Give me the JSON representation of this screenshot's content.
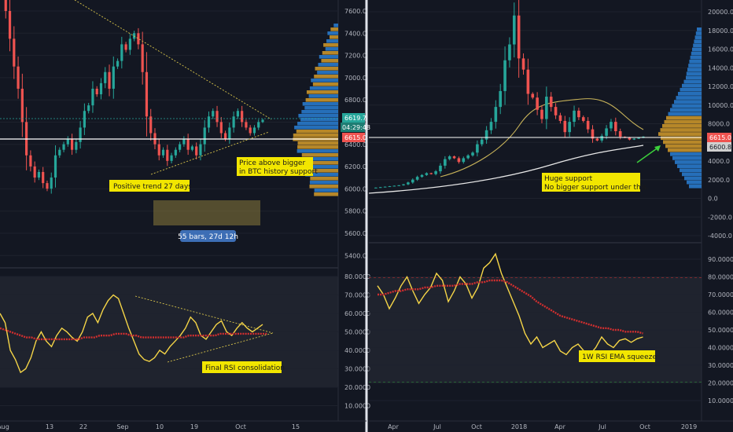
{
  "colors": {
    "background": "#131722",
    "up_candle": "#26a69a",
    "down_candle": "#ef5350",
    "rsi_line": "#f5d547",
    "rsi_ema": "#d32f2f",
    "volume_profile_up": "#2a7fd4",
    "volume_profile_down": "#d39b2a",
    "annotation_bg": "#f2e600",
    "annotation_text": "#1a1a1a",
    "range_box": "#8a7a3a",
    "range_label_bg": "#3d6eb5",
    "price_line": "#ffffff",
    "current_price_tag": "#ef5350",
    "ema_tag": "#d0d0d0",
    "teal_tag": "#26a69a"
  },
  "left_panel": {
    "price_axis": [
      "7600.0",
      "7400.0",
      "7200.0",
      "7000.0",
      "6800.0",
      "6600.0",
      "6400.0",
      "6200.0",
      "6000.0",
      "5800.0",
      "5600.0",
      "5400.0"
    ],
    "rsi_axis": [
      "80.0000",
      "70.0000",
      "60.0000",
      "50.0000",
      "40.0000",
      "30.0000",
      "20.0000",
      "10.0000"
    ],
    "time_axis": [
      "Aug",
      "13",
      "22",
      "Sep",
      "10",
      "19",
      "Oct",
      "15"
    ],
    "price_tags": {
      "teal": "6619.7",
      "time": "04:29:48",
      "red": "6615.0"
    },
    "annotations": {
      "trend": "Positive trend 27 days",
      "support_line1": "Price above bigger",
      "support_line2": "in BTC history support",
      "range_label": "55 bars, 27d 12h",
      "rsi_note": "Final RSI consolidation"
    }
  },
  "right_panel": {
    "price_axis": [
      "20000.0",
      "18000.0",
      "16000.0",
      "14000.0",
      "12000.0",
      "10000.0",
      "8000.0",
      "6000.0",
      "4000.0",
      "2000.0",
      "0.0",
      "-2000.0",
      "-4000.0"
    ],
    "rsi_axis": [
      "90.0000",
      "80.0000",
      "70.0000",
      "60.0000",
      "50.0000",
      "40.0000",
      "30.0000",
      "20.0000",
      "10.0000"
    ],
    "time_axis": [
      "Apr",
      "Jul",
      "Oct",
      "2018",
      "Apr",
      "Jul",
      "Oct",
      "2019"
    ],
    "price_tags": {
      "red": "6615.0",
      "grey": "6600.8"
    },
    "annotations": {
      "support_line1": "Huge support",
      "support_line2": "No bigger support under this.",
      "rsi_note": "1W RSI EMA squeeze"
    }
  },
  "chart_data": [
    {
      "type": "candlestick",
      "title": "",
      "ylim": [
        5300,
        7700
      ],
      "series": [
        {
          "name": "",
          "values": [
            7750,
            7600,
            7350,
            7100,
            6900,
            6600,
            6300,
            6200,
            6100,
            6150,
            6050,
            6000,
            6100,
            6300,
            6350,
            6400,
            6450,
            6350,
            6420,
            6550,
            6700,
            6750,
            6900,
            6850,
            6950,
            7050,
            6900,
            7100,
            7150,
            7300,
            7250,
            7350,
            7400,
            7300,
            7050,
            6650,
            6500,
            6400,
            6300,
            6350,
            6250,
            6300,
            6350,
            6400,
            6450,
            6350,
            6380,
            6300,
            6400,
            6550,
            6650,
            6700,
            6600,
            6500,
            6450,
            6550,
            6650,
            6700,
            6600,
            6550,
            6500,
            6550,
            6600,
            6620
          ]
        }
      ]
    },
    {
      "type": "line",
      "title": "",
      "ylim": [
        0,
        85
      ],
      "series": [
        {
          "name": "",
          "values": [
            60,
            55,
            40,
            35,
            28,
            30,
            36,
            45,
            50,
            45,
            42,
            48,
            52,
            50,
            47,
            45,
            50,
            58,
            60,
            55,
            62,
            67,
            70,
            68,
            60,
            52,
            45,
            38,
            35,
            34,
            36,
            40,
            38,
            42,
            45,
            48,
            52,
            58,
            55,
            48,
            46,
            50,
            54,
            56,
            50,
            48,
            52,
            55,
            52,
            50,
            52,
            54
          ]
        },
        {
          "name": "",
          "values": [
            52,
            51,
            50,
            49,
            48,
            47,
            47,
            46,
            46,
            46,
            46,
            46,
            46,
            46,
            46,
            46,
            47,
            47,
            47,
            48,
            48,
            48,
            49,
            49,
            49,
            48,
            48,
            47,
            47,
            47,
            47,
            47,
            47,
            47,
            47,
            47,
            48,
            48,
            48,
            48,
            48,
            48,
            49,
            49,
            49,
            49,
            49,
            49,
            49,
            49,
            49,
            49
          ]
        }
      ]
    },
    {
      "type": "candlestick",
      "title": "",
      "ylim": [
        -4000,
        20000
      ],
      "series": [
        {
          "name": "",
          "values": [
            1100,
            1150,
            1200,
            1250,
            1300,
            1350,
            1400,
            1500,
            1700,
            2000,
            2300,
            2500,
            2700,
            2600,
            2900,
            3500,
            4200,
            4500,
            4300,
            3900,
            4300,
            4600,
            4900,
            5800,
            6300,
            7300,
            8200,
            9800,
            11500,
            14800,
            16500,
            19600,
            15000,
            13800,
            11200,
            10800,
            9500,
            8500,
            10900,
            9800,
            8900,
            8300,
            7100,
            8200,
            9400,
            8700,
            8300,
            7400,
            6400,
            6200,
            6700,
            7500,
            8200,
            7200,
            6600,
            6500,
            6300,
            6400,
            6500,
            6615
          ]
        }
      ]
    }
  ]
}
